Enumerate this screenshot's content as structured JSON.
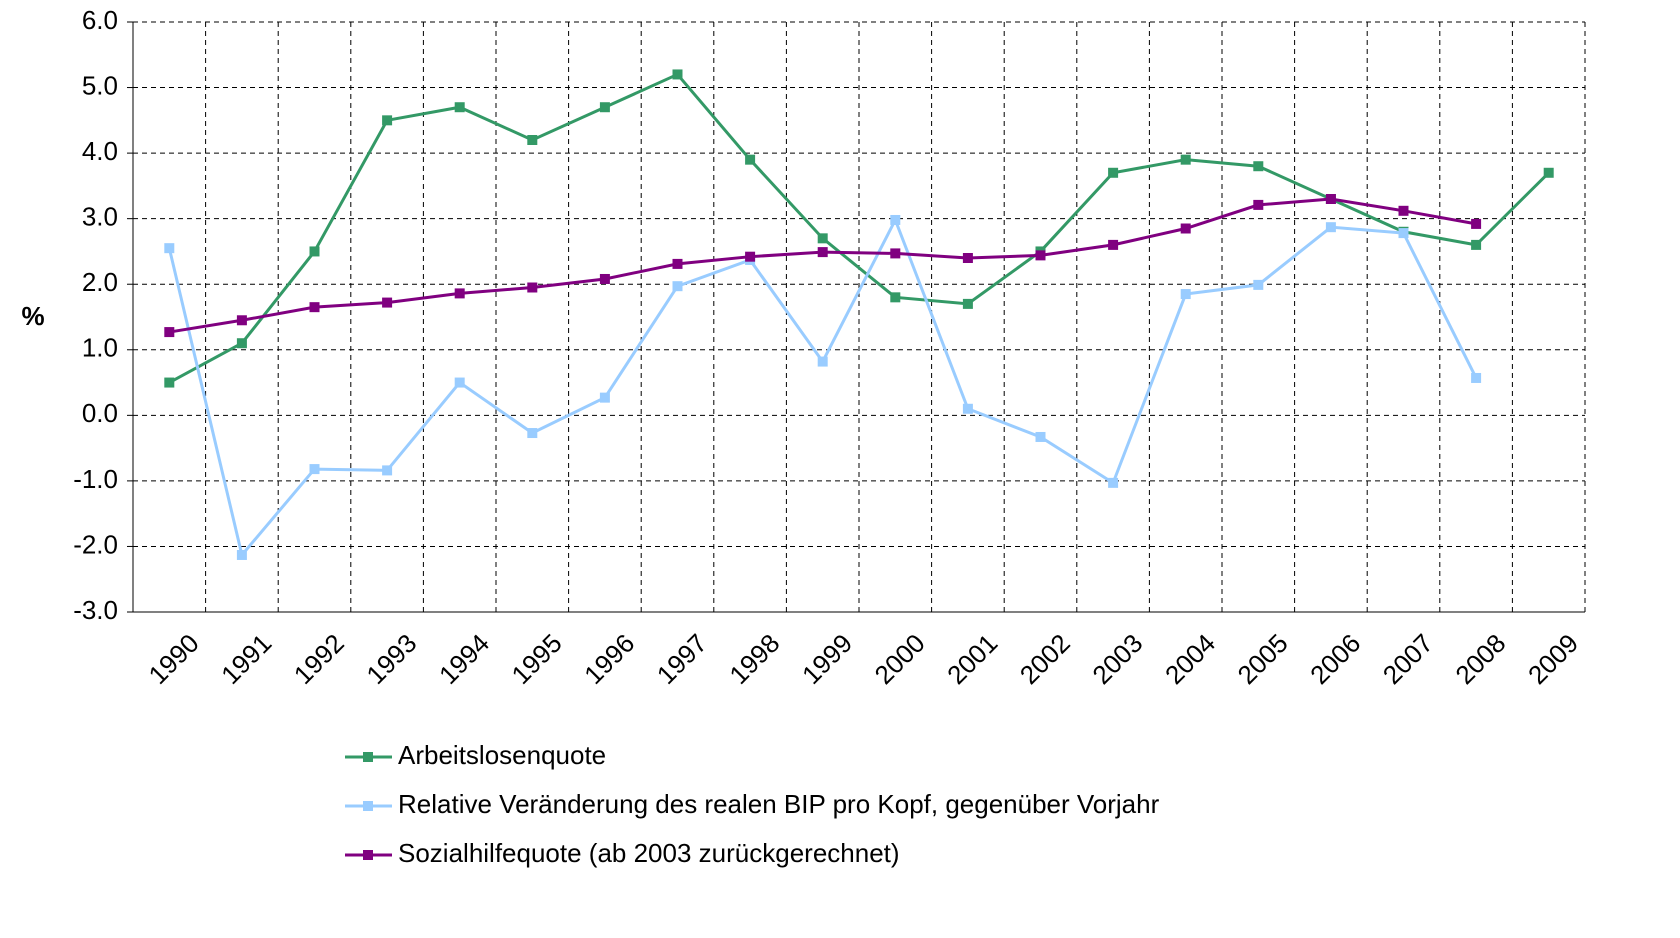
{
  "chart_data": {
    "type": "line",
    "ylabel": "%",
    "categories": [
      "1990",
      "1991",
      "1992",
      "1993",
      "1994",
      "1995",
      "1996",
      "1997",
      "1998",
      "1999",
      "2000",
      "2001",
      "2002",
      "2003",
      "2004",
      "2005",
      "2006",
      "2007",
      "2008",
      "2009"
    ],
    "series": [
      {
        "name": "Arbeitslosenquote",
        "color": "#339966",
        "values": [
          0.5,
          1.1,
          2.5,
          4.5,
          4.7,
          4.2,
          4.7,
          5.2,
          3.9,
          2.7,
          1.8,
          1.7,
          2.5,
          3.7,
          3.9,
          3.8,
          3.3,
          2.8,
          2.6,
          3.7
        ]
      },
      {
        "name": "Relative Veränderung des realen BIP pro Kopf, gegenüber Vorjahr",
        "color": "#99ccff",
        "values": [
          2.55,
          -2.13,
          -0.82,
          -0.84,
          0.5,
          -0.27,
          0.27,
          1.97,
          2.37,
          0.82,
          2.98,
          0.1,
          -0.33,
          -1.03,
          1.85,
          1.99,
          2.87,
          2.78,
          0.57,
          null
        ]
      },
      {
        "name": "Sozialhilfequote (ab 2003 zurückgerechnet)",
        "color": "#800080",
        "values": [
          1.27,
          1.45,
          1.65,
          1.72,
          1.86,
          1.95,
          2.08,
          2.31,
          2.42,
          2.49,
          2.47,
          2.4,
          2.44,
          2.6,
          2.85,
          3.21,
          3.3,
          3.12,
          2.92,
          null
        ]
      }
    ],
    "ylim": [
      -3,
      6
    ],
    "yticks": [
      {
        "value": -3,
        "label": "-3.0"
      },
      {
        "value": -2,
        "label": "-2.0"
      },
      {
        "value": -1,
        "label": "-1.0"
      },
      {
        "value": 0,
        "label": "0.0"
      },
      {
        "value": 1,
        "label": "1.0"
      },
      {
        "value": 2,
        "label": "2.0"
      },
      {
        "value": 3,
        "label": "3.0"
      },
      {
        "value": 4,
        "label": "4.0"
      },
      {
        "value": 5,
        "label": "5.0"
      },
      {
        "value": 6,
        "label": "6.0"
      }
    ],
    "grid": true,
    "legend": "bottom"
  }
}
